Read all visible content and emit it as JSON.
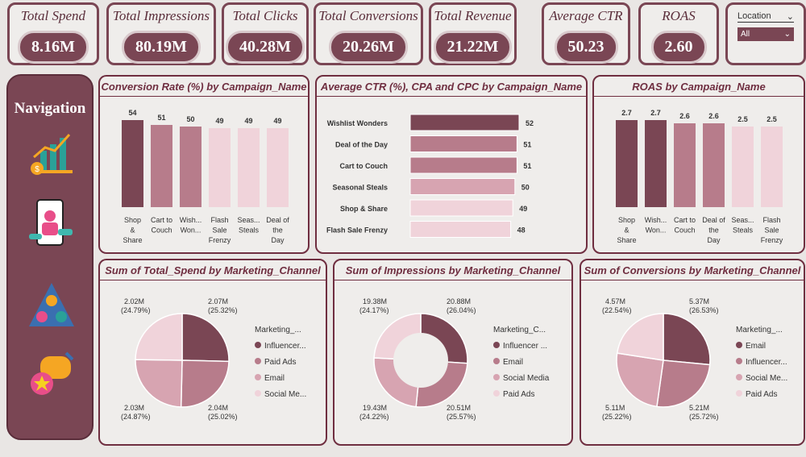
{
  "kpis": [
    {
      "label": "Total Spend",
      "value": "8.16M"
    },
    {
      "label": "Total Impressions",
      "value": "80.19M"
    },
    {
      "label": "Total Clicks",
      "value": "40.28M"
    },
    {
      "label": "Total Conversions",
      "value": "20.26M"
    },
    {
      "label": "Total Revenue",
      "value": "21.22M"
    },
    {
      "label": "Average CTR",
      "value": "50.23"
    },
    {
      "label": "ROAS",
      "value": "2.60"
    }
  ],
  "slicer": {
    "label": "Location",
    "selected": "All"
  },
  "nav": {
    "title": "Navigation",
    "icons": [
      "revenue-growth-icon",
      "social-media-influencer-icon",
      "team-pyramid-icon",
      "feedback-star-icon"
    ]
  },
  "colors": {
    "dark": "#7a4654",
    "mid": "#b77c8b",
    "light": "#d7a4b1",
    "lightest": "#f0d3da"
  },
  "chart_data": [
    {
      "type": "bar",
      "title": "Conversion Rate (%) by Campaign_Name",
      "categories": [
        [
          "Shop",
          "&",
          "Share"
        ],
        [
          "Cart to",
          "Couch"
        ],
        [
          "Wish...",
          "Won..."
        ],
        [
          "Flash",
          "Sale",
          "Frenzy"
        ],
        [
          "Seas...",
          "Steals"
        ],
        [
          "Deal of",
          "the",
          "Day"
        ]
      ],
      "values": [
        54,
        51,
        50,
        49,
        49,
        49
      ],
      "labels": [
        "54",
        "51",
        "50",
        "49",
        "49",
        "49"
      ]
    },
    {
      "type": "bar",
      "orientation": "horizontal",
      "title": "Average CTR (%), CPA and CPC by Campaign_Name",
      "categories": [
        "Wishlist Wonders",
        "Deal of the Day",
        "Cart to Couch",
        "Seasonal Steals",
        "Shop & Share",
        "Flash Sale Frenzy"
      ],
      "values": [
        52,
        51,
        51,
        50,
        49,
        48
      ],
      "labels": [
        "52",
        "51",
        "51",
        "50",
        "49",
        "48"
      ]
    },
    {
      "type": "bar",
      "title": "ROAS by Campaign_Name",
      "categories": [
        [
          "Shop",
          "&",
          "Share"
        ],
        [
          "Wish...",
          "Won..."
        ],
        [
          "Cart to",
          "Couch"
        ],
        [
          "Deal of",
          "the",
          "Day"
        ],
        [
          "Seas...",
          "Steals"
        ],
        [
          "Flash",
          "Sale",
          "Frenzy"
        ]
      ],
      "values": [
        2.7,
        2.7,
        2.6,
        2.6,
        2.5,
        2.5
      ],
      "labels": [
        "2.7",
        "2.7",
        "2.6",
        "2.6",
        "2.5",
        "2.5"
      ]
    },
    {
      "type": "pie",
      "title": "Sum of Total_Spend by Marketing_Channel",
      "legend_title": "Marketing_...",
      "legend": [
        "Influencer...",
        "Paid Ads",
        "Email",
        "Social Me..."
      ],
      "values": [
        2.07,
        2.04,
        2.03,
        2.02
      ],
      "labels": [
        "2.07M",
        "2.04M",
        "2.03M",
        "2.02M"
      ],
      "percents": [
        "(25.32%)",
        "(25.02%)",
        "(24.87%)",
        "(24.79%)"
      ]
    },
    {
      "type": "donut",
      "title": "Sum of Impressions by Marketing_Channel",
      "legend_title": "Marketing_C...",
      "legend": [
        "Influencer ...",
        "Email",
        "Social Media",
        "Paid Ads"
      ],
      "values": [
        20.88,
        20.51,
        19.43,
        19.38
      ],
      "labels": [
        "20.88M",
        "20.51M",
        "19.43M",
        "19.38M"
      ],
      "percents": [
        "(26.04%)",
        "(25.57%)",
        "(24.22%)",
        "(24.17%)"
      ]
    },
    {
      "type": "pie",
      "title": "Sum of Conversions by Marketing_Channel",
      "legend_title": "Marketing_...",
      "legend": [
        "Email",
        "Influencer...",
        "Social Me...",
        "Paid Ads"
      ],
      "values": [
        5.37,
        5.21,
        5.11,
        4.57
      ],
      "labels": [
        "5.37M",
        "5.21M",
        "5.11M",
        "4.57M"
      ],
      "percents": [
        "(26.53%)",
        "(25.72%)",
        "(25.22%)",
        "(22.54%)"
      ]
    }
  ]
}
